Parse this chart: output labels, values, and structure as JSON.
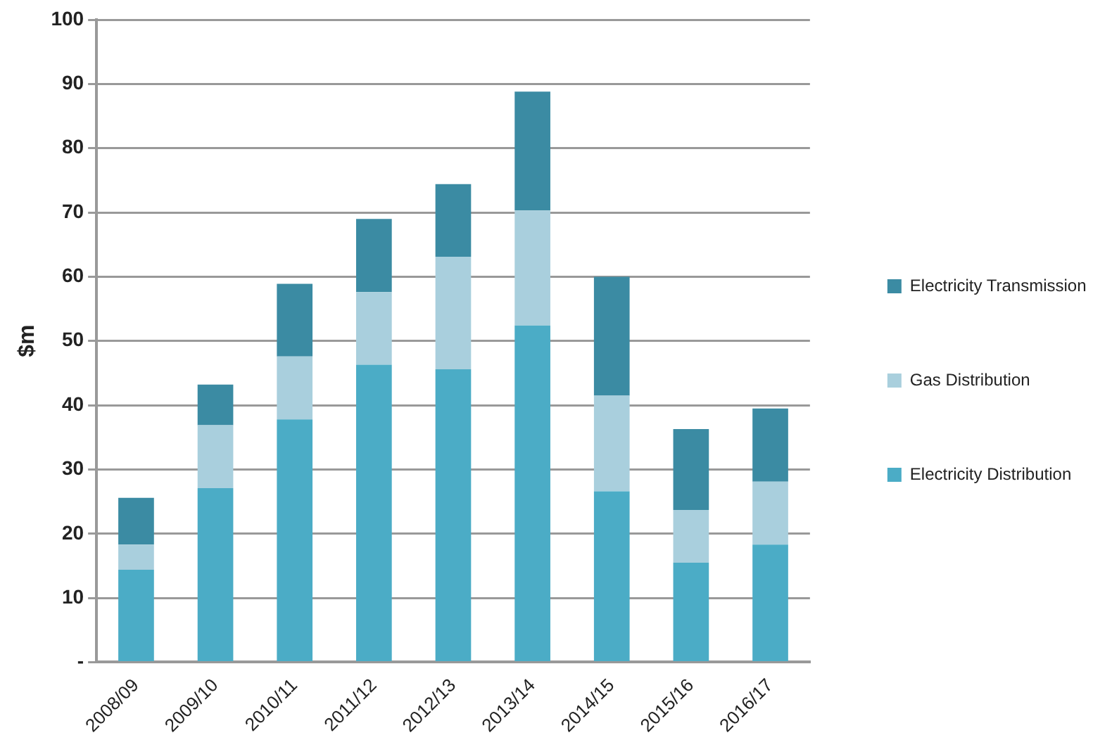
{
  "chart_data": {
    "type": "bar",
    "stacked": true,
    "ylabel": "$m",
    "categories": [
      "2008/09",
      "2009/10",
      "2010/11",
      "2011/12",
      "2012/13",
      "2013/14",
      "2014/15",
      "2015/16",
      "2016/17"
    ],
    "series": [
      {
        "name": "Electricity Distribution",
        "color": "#4bacc6",
        "values": [
          14.4,
          27.1,
          37.8,
          46.3,
          45.6,
          52.4,
          26.6,
          15.5,
          18.3
        ]
      },
      {
        "name": "Gas Distribution",
        "color": "#a9cfdd",
        "values": [
          3.9,
          9.8,
          9.8,
          11.3,
          17.5,
          17.9,
          14.9,
          8.2,
          9.8
        ]
      },
      {
        "name": "Electricity Transmission",
        "color": "#3b8ba3",
        "values": [
          7.3,
          6.3,
          11.3,
          11.4,
          11.3,
          18.5,
          18.5,
          12.6,
          11.4
        ]
      }
    ],
    "ylim": [
      0,
      100
    ],
    "yticks": [
      {
        "value": 0,
        "label": "-"
      },
      10,
      20,
      30,
      40,
      50,
      60,
      70,
      80,
      90,
      100
    ],
    "grid": "y",
    "legend": "right"
  }
}
